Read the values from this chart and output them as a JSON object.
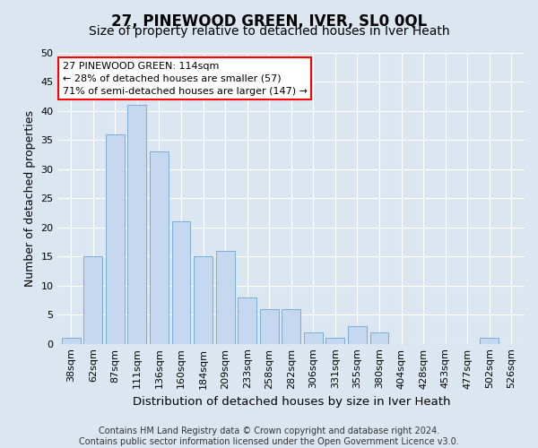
{
  "title": "27, PINEWOOD GREEN, IVER, SL0 0QL",
  "subtitle": "Size of property relative to detached houses in Iver Heath",
  "xlabel": "Distribution of detached houses by size in Iver Heath",
  "ylabel": "Number of detached properties",
  "bar_labels": [
    "38sqm",
    "62sqm",
    "87sqm",
    "111sqm",
    "136sqm",
    "160sqm",
    "184sqm",
    "209sqm",
    "233sqm",
    "258sqm",
    "282sqm",
    "306sqm",
    "331sqm",
    "355sqm",
    "380sqm",
    "404sqm",
    "428sqm",
    "453sqm",
    "477sqm",
    "502sqm",
    "526sqm"
  ],
  "bar_values": [
    1,
    15,
    36,
    41,
    33,
    21,
    15,
    16,
    8,
    6,
    6,
    2,
    1,
    3,
    2,
    0,
    0,
    0,
    0,
    1,
    0
  ],
  "bar_color": "#c5d8f0",
  "bar_edge_color": "#7aadd4",
  "annotation_text": "27 PINEWOOD GREEN: 114sqm\n← 28% of detached houses are smaller (57)\n71% of semi-detached houses are larger (147) →",
  "annotation_box_color": "white",
  "annotation_box_edge": "red",
  "ylim": [
    0,
    50
  ],
  "yticks": [
    0,
    5,
    10,
    15,
    20,
    25,
    30,
    35,
    40,
    45,
    50
  ],
  "background_color": "#dce6f0",
  "plot_bg_color": "#dce6f0",
  "footer_line1": "Contains HM Land Registry data © Crown copyright and database right 2024.",
  "footer_line2": "Contains public sector information licensed under the Open Government Licence v3.0.",
  "title_fontsize": 12,
  "subtitle_fontsize": 10,
  "xlabel_fontsize": 9.5,
  "ylabel_fontsize": 9,
  "tick_fontsize": 8,
  "footer_fontsize": 7
}
